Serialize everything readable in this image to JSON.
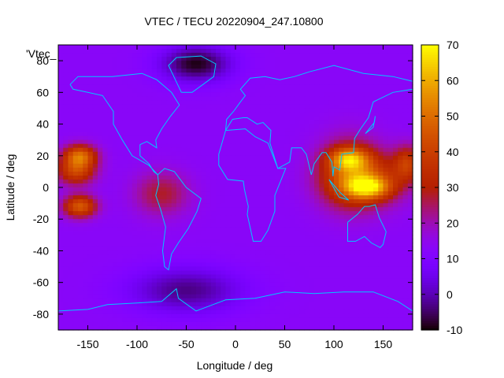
{
  "chart_data": {
    "type": "heatmap",
    "title": "VTEC / TECU 20220904_247.10800",
    "xlabel": "Longitude / deg",
    "ylabel": "Latitude / deg",
    "legend_label": "'Vtec_",
    "xlim": [
      -180,
      180
    ],
    "ylim": [
      -90,
      90
    ],
    "xticks": [
      -150,
      -100,
      -50,
      0,
      50,
      100,
      150
    ],
    "yticks": [
      -80,
      -60,
      -40,
      -20,
      0,
      20,
      40,
      60,
      80
    ],
    "colorbar": {
      "min": -10,
      "max": 70,
      "ticks": [
        -10,
        0,
        10,
        20,
        30,
        40,
        50,
        60,
        70
      ],
      "palette": "gnuplot-rgbformulae-7-5-15"
    },
    "field": {
      "description_source": "estimated from image",
      "background": 13,
      "blobs": [
        {
          "lon": -162,
          "lat": 10,
          "value": 40,
          "sx": 14,
          "sy": 6
        },
        {
          "lon": -158,
          "lat": 20,
          "value": 47,
          "sx": 12,
          "sy": 5
        },
        {
          "lon": -158,
          "lat": -12,
          "value": 46,
          "sx": 12,
          "sy": 5
        },
        {
          "lon": -75,
          "lat": -4,
          "value": 28,
          "sx": 20,
          "sy": 10
        },
        {
          "lon": 115,
          "lat": 10,
          "value": 30,
          "sx": 22,
          "sy": 16
        },
        {
          "lon": 130,
          "lat": 5,
          "value": 38,
          "sx": 28,
          "sy": 12
        },
        {
          "lon": 135,
          "lat": 0,
          "value": 46,
          "sx": 16,
          "sy": 5
        },
        {
          "lon": 115,
          "lat": 18,
          "value": 42,
          "sx": 14,
          "sy": 5
        },
        {
          "lon": 175,
          "lat": 15,
          "value": 36,
          "sx": 10,
          "sy": 8
        },
        {
          "lon": -40,
          "lat": 78,
          "value": -9,
          "sx": 25,
          "sy": 8
        },
        {
          "lon": -50,
          "lat": -65,
          "value": -3,
          "sx": 40,
          "sy": 10
        }
      ]
    }
  },
  "colors": {
    "coastline": "#00c8ff",
    "axis": "#000000"
  }
}
